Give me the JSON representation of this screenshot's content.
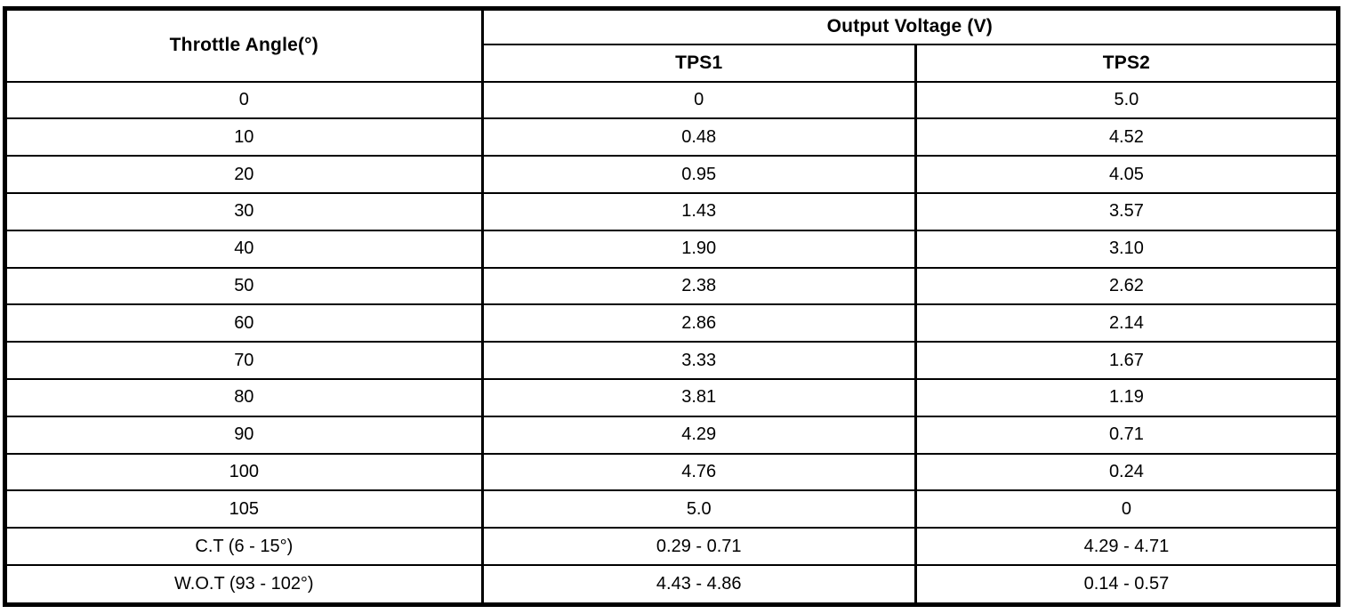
{
  "table": {
    "angle_header": "Throttle Angle(°)",
    "voltage_group_header": "Output Voltage (V)",
    "tps1_header": "TPS1",
    "tps2_header": "TPS2",
    "rows": [
      {
        "angle": "0",
        "tps1": "0",
        "tps2": "5.0"
      },
      {
        "angle": "10",
        "tps1": "0.48",
        "tps2": "4.52"
      },
      {
        "angle": "20",
        "tps1": "0.95",
        "tps2": "4.05"
      },
      {
        "angle": "30",
        "tps1": "1.43",
        "tps2": "3.57"
      },
      {
        "angle": "40",
        "tps1": "1.90",
        "tps2": "3.10"
      },
      {
        "angle": "50",
        "tps1": "2.38",
        "tps2": "2.62"
      },
      {
        "angle": "60",
        "tps1": "2.86",
        "tps2": "2.14"
      },
      {
        "angle": "70",
        "tps1": "3.33",
        "tps2": "1.67"
      },
      {
        "angle": "80",
        "tps1": "3.81",
        "tps2": "1.19"
      },
      {
        "angle": "90",
        "tps1": "4.29",
        "tps2": "0.71"
      },
      {
        "angle": "100",
        "tps1": "4.76",
        "tps2": "0.24"
      },
      {
        "angle": "105",
        "tps1": "5.0",
        "tps2": "0"
      },
      {
        "angle": "C.T (6 - 15°)",
        "tps1": "0.29 - 0.71",
        "tps2": "4.29 - 4.71"
      },
      {
        "angle": "W.O.T (93 - 102°)",
        "tps1": "4.43 - 4.86",
        "tps2": "0.14 - 0.57"
      }
    ]
  },
  "colors": {
    "border": "#000000",
    "background": "#ffffff",
    "text": "#000000"
  }
}
